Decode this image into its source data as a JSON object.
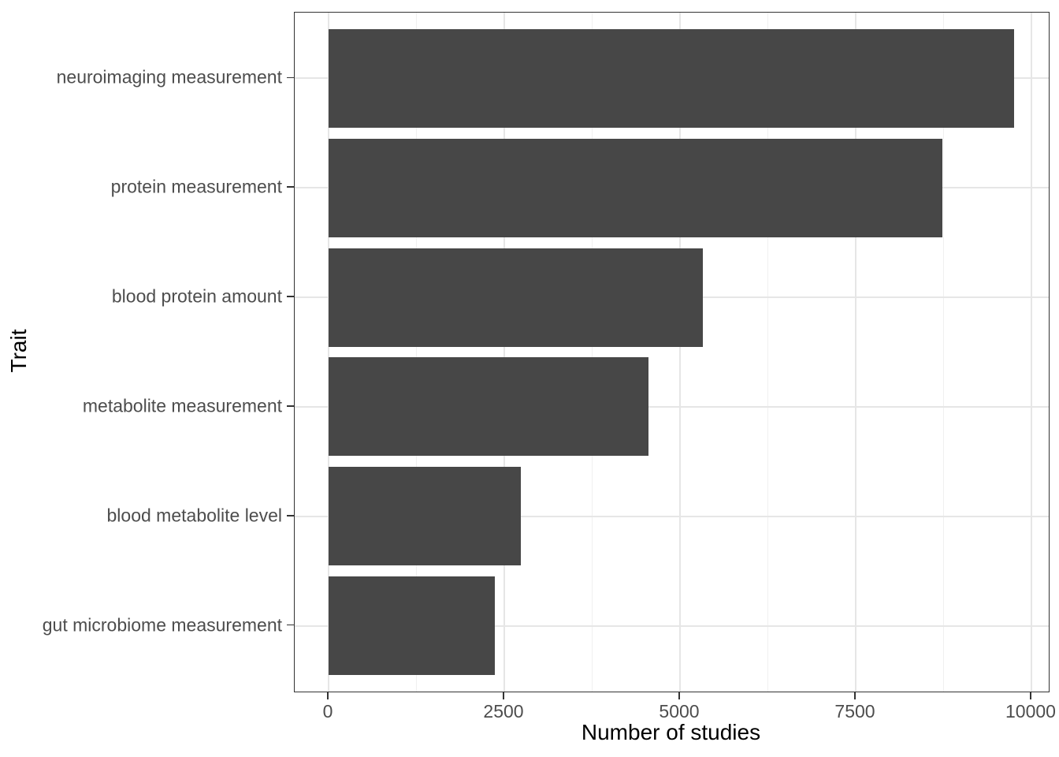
{
  "chart_data": {
    "type": "bar",
    "orientation": "horizontal",
    "title": "",
    "xlabel": "Number of studies",
    "ylabel": "Trait",
    "categories": [
      "neuroimaging measurement",
      "protein measurement",
      "blood protein amount",
      "metabolite measurement",
      "blood metabolite level",
      "gut microbiome measurement"
    ],
    "values": [
      9750,
      8730,
      5330,
      4550,
      2740,
      2360
    ],
    "xlim": [
      0,
      10000
    ],
    "x_major_ticks": [
      0,
      2500,
      5000,
      7500,
      10000
    ],
    "x_tick_labels": [
      "0",
      "2500",
      "5000",
      "7500",
      "10000"
    ],
    "x_minor_ticks": [
      1250,
      3750,
      6250,
      8750
    ],
    "legend_position": "none",
    "grid": "vertical major+minor, horizontal at category centers",
    "style": {
      "bar_color": "#474747",
      "grid_major_color": "#e6e6e6",
      "grid_minor_color": "#f0f0f0",
      "panel_border_color": "#333333",
      "tick_label_color": "#4d4d4d",
      "axis_title_color": "#000000",
      "background_color": "#ffffff"
    }
  }
}
